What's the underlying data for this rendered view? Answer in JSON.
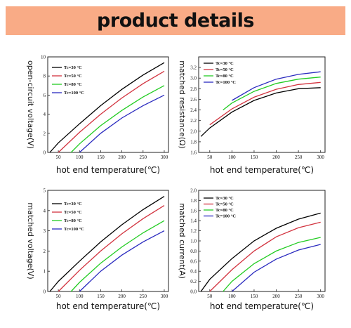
{
  "banner": {
    "title": "product details",
    "color": "#f9ab86"
  },
  "chart_data": [
    {
      "type": "line",
      "title": "",
      "xlabel": "hot end temperature(℃)",
      "ylabel": "open-circuit voltage(V)",
      "xlim": [
        25,
        310
      ],
      "ylim": [
        0,
        10
      ],
      "xticks": [
        50,
        100,
        150,
        200,
        250,
        300
      ],
      "yticks": [
        0,
        2,
        4,
        6,
        8,
        10
      ],
      "legend_position": "top-left",
      "series": [
        {
          "name": "Tc=30 °C",
          "color": "#000000",
          "x": [
            30,
            50,
            100,
            150,
            200,
            250,
            300
          ],
          "y": [
            0.0,
            1.0,
            3.0,
            4.9,
            6.6,
            8.1,
            9.4
          ]
        },
        {
          "name": "Tc=50 °C",
          "color": "#d2333f",
          "x": [
            50,
            100,
            150,
            200,
            250,
            300
          ],
          "y": [
            0.0,
            2.1,
            4.0,
            5.7,
            7.2,
            8.5
          ]
        },
        {
          "name": "Tc=80 °C",
          "color": "#22cc22",
          "x": [
            80,
            100,
            150,
            200,
            250,
            300
          ],
          "y": [
            0.0,
            0.9,
            2.8,
            4.4,
            5.8,
            7.0
          ]
        },
        {
          "name": "Tc=100 °C",
          "color": "#2a2abf",
          "x": [
            100,
            150,
            200,
            250,
            300
          ],
          "y": [
            0.0,
            2.0,
            3.6,
            4.9,
            6.0
          ]
        }
      ]
    },
    {
      "type": "line",
      "title": "",
      "xlabel": "hot end temperature(℃)",
      "ylabel": "matched resistance(Ω)",
      "xlim": [
        25,
        310
      ],
      "ylim": [
        1.6,
        3.4
      ],
      "xticks": [
        50,
        100,
        150,
        200,
        250,
        300
      ],
      "yticks": [
        1.6,
        1.8,
        2.0,
        2.2,
        2.4,
        2.6,
        2.8,
        3.0,
        3.2
      ],
      "legend_position": "top-left",
      "series": [
        {
          "name": "Tc=30 °C",
          "color": "#000000",
          "x": [
            30,
            50,
            100,
            150,
            200,
            250,
            300
          ],
          "y": [
            1.9,
            2.06,
            2.36,
            2.58,
            2.72,
            2.8,
            2.82
          ]
        },
        {
          "name": "Tc=50 °C",
          "color": "#d2333f",
          "x": [
            50,
            100,
            150,
            200,
            250,
            300
          ],
          "y": [
            2.12,
            2.42,
            2.64,
            2.79,
            2.88,
            2.92
          ]
        },
        {
          "name": "Tc=80 °C",
          "color": "#22cc22",
          "x": [
            80,
            100,
            150,
            200,
            250,
            300
          ],
          "y": [
            2.4,
            2.53,
            2.75,
            2.9,
            2.98,
            3.02
          ]
        },
        {
          "name": "Tc=100 °C",
          "color": "#2a2abf",
          "x": [
            100,
            150,
            200,
            250,
            300
          ],
          "y": [
            2.58,
            2.82,
            2.98,
            3.07,
            3.12
          ]
        }
      ]
    },
    {
      "type": "line",
      "title": "",
      "xlabel": "hot end temperature(℃)",
      "ylabel": "matched voltage(V)",
      "xlim": [
        25,
        310
      ],
      "ylim": [
        0,
        5
      ],
      "xticks": [
        50,
        100,
        150,
        200,
        250,
        300
      ],
      "yticks": [
        0,
        1,
        2,
        3,
        4,
        5
      ],
      "legend_position": "top-left",
      "series": [
        {
          "name": "Tc=30 °C",
          "color": "#000000",
          "x": [
            30,
            50,
            100,
            150,
            200,
            250,
            300
          ],
          "y": [
            0.0,
            0.5,
            1.5,
            2.45,
            3.3,
            4.05,
            4.7
          ]
        },
        {
          "name": "Tc=50 °C",
          "color": "#d2333f",
          "x": [
            50,
            100,
            150,
            200,
            250,
            300
          ],
          "y": [
            0.0,
            1.05,
            2.0,
            2.85,
            3.6,
            4.25
          ]
        },
        {
          "name": "Tc=80 °C",
          "color": "#22cc22",
          "x": [
            80,
            100,
            150,
            200,
            250,
            300
          ],
          "y": [
            0.0,
            0.45,
            1.4,
            2.2,
            2.9,
            3.5
          ]
        },
        {
          "name": "Tc=100 °C",
          "color": "#2a2abf",
          "x": [
            100,
            150,
            200,
            250,
            300
          ],
          "y": [
            0.0,
            1.0,
            1.8,
            2.45,
            3.0
          ]
        }
      ]
    },
    {
      "type": "line",
      "title": "",
      "xlabel": "hot end temperature(℃)",
      "ylabel": "matched current(A)",
      "xlim": [
        25,
        310
      ],
      "ylim": [
        0,
        2.0
      ],
      "xticks": [
        50,
        100,
        150,
        200,
        250,
        300
      ],
      "yticks": [
        0.0,
        0.2,
        0.4,
        0.6,
        0.8,
        1.0,
        1.2,
        1.4,
        1.6,
        1.8,
        2.0
      ],
      "legend_position": "top-left",
      "series": [
        {
          "name": "Tc=30 °C",
          "color": "#000000",
          "x": [
            30,
            50,
            100,
            150,
            200,
            250,
            300
          ],
          "y": [
            0.0,
            0.24,
            0.65,
            1.0,
            1.25,
            1.43,
            1.55
          ]
        },
        {
          "name": "Tc=50 °C",
          "color": "#d2333f",
          "x": [
            50,
            100,
            150,
            200,
            250,
            300
          ],
          "y": [
            0.0,
            0.43,
            0.8,
            1.08,
            1.26,
            1.37
          ]
        },
        {
          "name": "Tc=80 °C",
          "color": "#22cc22",
          "x": [
            80,
            100,
            150,
            200,
            250,
            300
          ],
          "y": [
            0.0,
            0.2,
            0.55,
            0.8,
            0.97,
            1.07
          ]
        },
        {
          "name": "Tc=100 °C",
          "color": "#2a2abf",
          "x": [
            100,
            150,
            200,
            250,
            300
          ],
          "y": [
            0.0,
            0.38,
            0.64,
            0.82,
            0.93
          ]
        }
      ]
    }
  ]
}
